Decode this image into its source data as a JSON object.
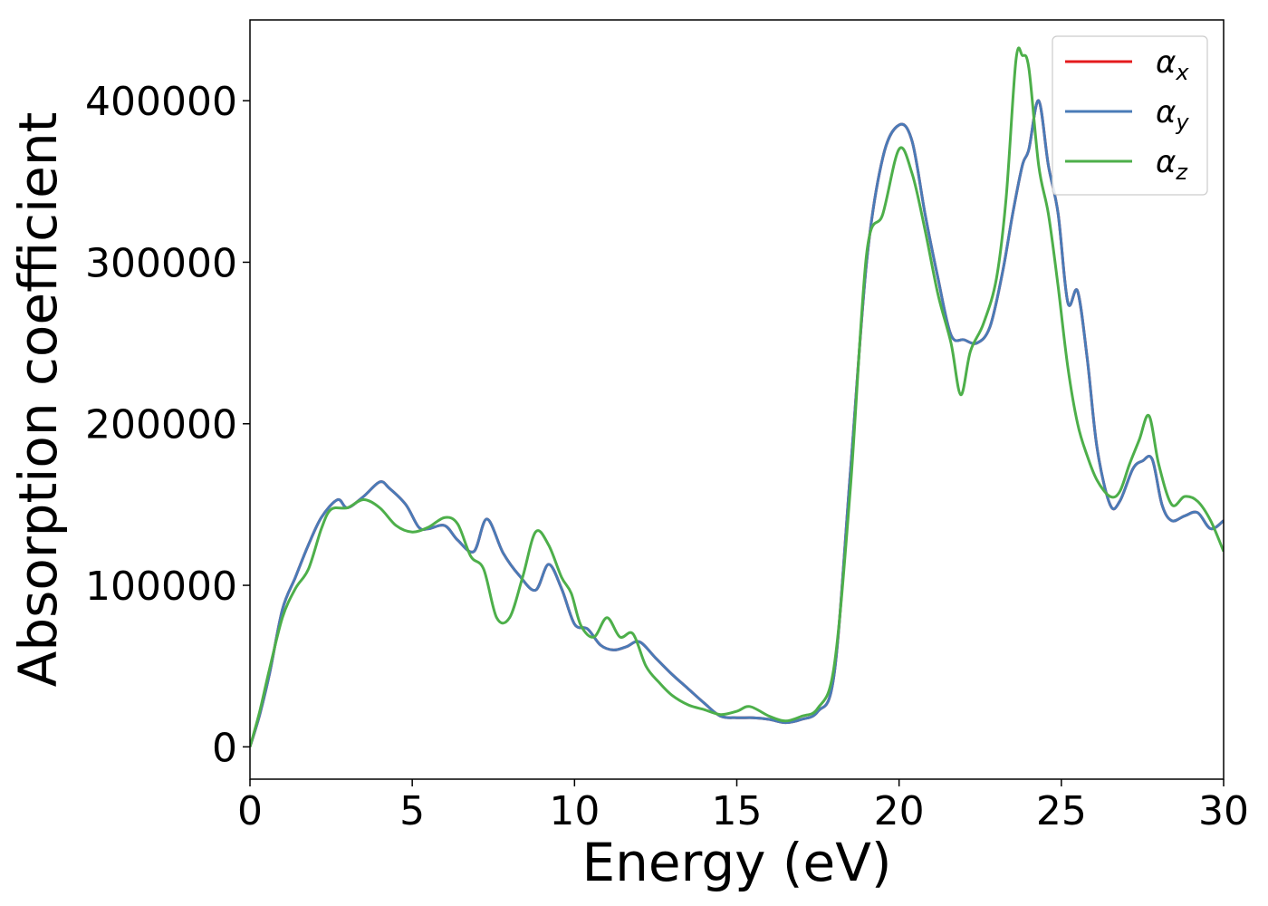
{
  "chart_data": {
    "type": "line",
    "title": "",
    "xlabel": "Energy (eV)",
    "ylabel": "Absorption coefficient",
    "xlim": [
      0,
      30
    ],
    "ylim": [
      -20000,
      450000
    ],
    "x_ticks": [
      0,
      5,
      10,
      15,
      20,
      25,
      30
    ],
    "x_tick_labels": [
      "0",
      "5",
      "10",
      "15",
      "20",
      "25",
      "30"
    ],
    "y_ticks": [
      0,
      100000,
      200000,
      300000,
      400000
    ],
    "y_tick_labels": [
      "0",
      "100000",
      "200000",
      "300000",
      "400000"
    ],
    "grid": false,
    "legend_position": "top-right",
    "legend": [
      {
        "base": "α",
        "sub": "x",
        "color": "#e41a1c"
      },
      {
        "base": "α",
        "sub": "y",
        "color": "#4a7bb7"
      },
      {
        "base": "α",
        "sub": "z",
        "color": "#4daf4a"
      }
    ],
    "series": [
      {
        "name": "αx",
        "color": "#e41a1c",
        "x": [
          0,
          0.3,
          0.6,
          1.0,
          1.4,
          1.8,
          2.2,
          2.7,
          3.0,
          3.5,
          4.0,
          4.3,
          4.8,
          5.2,
          5.5,
          6.0,
          6.4,
          6.9,
          7.3,
          7.8,
          8.3,
          8.8,
          9.2,
          9.6,
          10.0,
          10.4,
          10.8,
          11.2,
          11.6,
          12.0,
          12.5,
          13.0,
          13.5,
          14.0,
          14.5,
          15.0,
          15.5,
          16.0,
          16.5,
          17.0,
          17.5,
          18.0,
          18.5,
          19.0,
          19.5,
          20.0,
          20.4,
          20.8,
          21.2,
          21.6,
          22.0,
          22.4,
          22.8,
          23.2,
          23.5,
          23.8,
          24.0,
          24.3,
          24.6,
          24.9,
          25.2,
          25.5,
          25.8,
          26.1,
          26.5,
          26.8,
          27.2,
          27.5,
          27.8,
          28.1,
          28.4,
          28.8,
          29.2,
          29.6,
          30.0
        ],
        "y": [
          0,
          20000,
          45000,
          85000,
          105000,
          125000,
          142000,
          153000,
          148000,
          155000,
          164000,
          160000,
          150000,
          136000,
          135000,
          137000,
          128000,
          121000,
          141000,
          120000,
          106000,
          97000,
          113000,
          98000,
          76000,
          73000,
          63000,
          60000,
          62000,
          65000,
          55000,
          45000,
          36000,
          27000,
          19000,
          18000,
          18000,
          17000,
          15000,
          17000,
          22000,
          45000,
          170000,
          300000,
          365000,
          385000,
          375000,
          330000,
          290000,
          255000,
          252000,
          250000,
          260000,
          295000,
          330000,
          360000,
          370000,
          400000,
          360000,
          330000,
          275000,
          282000,
          240000,
          185000,
          150000,
          152000,
          172000,
          177000,
          178000,
          150000,
          140000,
          143000,
          145000,
          135000,
          140000
        ]
      },
      {
        "name": "αy",
        "color": "#4a7bb7",
        "x": [
          0,
          0.3,
          0.6,
          1.0,
          1.4,
          1.8,
          2.2,
          2.7,
          3.0,
          3.5,
          4.0,
          4.3,
          4.8,
          5.2,
          5.5,
          6.0,
          6.4,
          6.9,
          7.3,
          7.8,
          8.3,
          8.8,
          9.2,
          9.6,
          10.0,
          10.4,
          10.8,
          11.2,
          11.6,
          12.0,
          12.5,
          13.0,
          13.5,
          14.0,
          14.5,
          15.0,
          15.5,
          16.0,
          16.5,
          17.0,
          17.5,
          18.0,
          18.5,
          19.0,
          19.5,
          20.0,
          20.4,
          20.8,
          21.2,
          21.6,
          22.0,
          22.4,
          22.8,
          23.2,
          23.5,
          23.8,
          24.0,
          24.3,
          24.6,
          24.9,
          25.2,
          25.5,
          25.8,
          26.1,
          26.5,
          26.8,
          27.2,
          27.5,
          27.8,
          28.1,
          28.4,
          28.8,
          29.2,
          29.6,
          30.0
        ],
        "y": [
          0,
          20000,
          45000,
          85000,
          105000,
          125000,
          142000,
          153000,
          148000,
          155000,
          164000,
          160000,
          150000,
          136000,
          135000,
          137000,
          128000,
          121000,
          141000,
          120000,
          106000,
          97000,
          113000,
          98000,
          76000,
          73000,
          63000,
          60000,
          62000,
          65000,
          55000,
          45000,
          36000,
          27000,
          19000,
          18000,
          18000,
          17000,
          15000,
          17000,
          22000,
          45000,
          170000,
          300000,
          365000,
          385000,
          375000,
          330000,
          290000,
          255000,
          252000,
          250000,
          260000,
          295000,
          330000,
          360000,
          370000,
          400000,
          360000,
          330000,
          275000,
          282000,
          240000,
          185000,
          150000,
          152000,
          172000,
          177000,
          178000,
          150000,
          140000,
          143000,
          145000,
          135000,
          140000
        ]
      },
      {
        "name": "αz",
        "color": "#4daf4a",
        "x": [
          0,
          0.3,
          0.6,
          1.0,
          1.4,
          1.8,
          2.2,
          2.5,
          3.0,
          3.5,
          4.0,
          4.5,
          5.0,
          5.5,
          6.0,
          6.4,
          6.8,
          7.2,
          7.6,
          8.0,
          8.4,
          8.8,
          9.2,
          9.6,
          9.9,
          10.2,
          10.6,
          11.0,
          11.4,
          11.8,
          12.2,
          12.6,
          13.0,
          13.5,
          14.0,
          14.5,
          15.0,
          15.4,
          16.0,
          16.5,
          17.0,
          17.5,
          18.0,
          18.5,
          19.0,
          19.5,
          20.0,
          20.4,
          20.8,
          21.2,
          21.6,
          21.9,
          22.2,
          22.6,
          23.0,
          23.3,
          23.6,
          23.8,
          24.0,
          24.3,
          24.6,
          24.9,
          25.2,
          25.5,
          25.8,
          26.1,
          26.5,
          26.8,
          27.1,
          27.4,
          27.7,
          28.0,
          28.4,
          28.8,
          29.2,
          29.6,
          30.0
        ],
        "y": [
          0,
          22000,
          48000,
          80000,
          98000,
          110000,
          135000,
          147000,
          148000,
          153000,
          148000,
          137000,
          133000,
          136000,
          142000,
          138000,
          118000,
          110000,
          80000,
          80000,
          105000,
          133000,
          125000,
          105000,
          95000,
          75000,
          68000,
          80000,
          68000,
          70000,
          50000,
          40000,
          32000,
          26000,
          23000,
          20000,
          22000,
          25000,
          19000,
          16000,
          19000,
          24000,
          50000,
          160000,
          305000,
          330000,
          370000,
          355000,
          320000,
          280000,
          250000,
          218000,
          245000,
          262000,
          290000,
          340000,
          425000,
          428000,
          420000,
          360000,
          330000,
          285000,
          235000,
          200000,
          180000,
          165000,
          155000,
          158000,
          175000,
          190000,
          205000,
          175000,
          150000,
          155000,
          152000,
          140000,
          121000
        ]
      }
    ]
  }
}
